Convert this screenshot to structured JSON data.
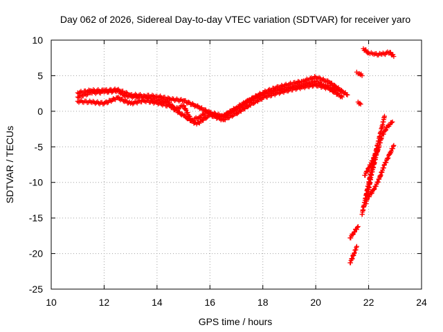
{
  "chart_data": {
    "type": "scatter",
    "title": "Day 062 of 2026, Sidereal Day-to-day VTEC variation (SDTVAR) for receiver yaro",
    "xlabel": "GPS time / hours",
    "ylabel": "SDTVAR / TECUs",
    "xlim": [
      10,
      24
    ],
    "ylim": [
      -25,
      10
    ],
    "xticks": [
      10,
      12,
      14,
      16,
      18,
      20,
      22,
      24
    ],
    "yticks": [
      10,
      5,
      0,
      -5,
      -10,
      -15,
      -20,
      -25
    ],
    "xtick_labels": [
      "10",
      "12",
      "14",
      "16",
      "18",
      "20",
      "22",
      "24"
    ],
    "ytick_labels": [
      "10",
      "5",
      "0",
      "-5",
      "-10",
      "-15",
      "-20",
      "-25"
    ],
    "grid": true,
    "marker": "+",
    "colors": {
      "series": "#ff0000",
      "grid": "#a0a0a0",
      "frame": "#000000"
    },
    "series": [
      {
        "name": "main-trace",
        "x": [
          11.0,
          11.5,
          12.0,
          12.5,
          12.8,
          13.2,
          13.6,
          14.0,
          14.4,
          14.7,
          15.0,
          15.3,
          15.6,
          15.9,
          16.2,
          16.5,
          16.8,
          17.2,
          17.6,
          18.0,
          18.5,
          19.0,
          19.5,
          20.0,
          20.3,
          20.6,
          20.9,
          21.2
        ],
        "y": [
          2.0,
          2.6,
          2.7,
          2.9,
          2.2,
          2.0,
          2.0,
          1.6,
          1.3,
          0.3,
          0.8,
          -1.3,
          -0.8,
          -0.1,
          -0.7,
          -0.7,
          -0.1,
          0.8,
          1.8,
          2.4,
          2.9,
          3.3,
          3.7,
          4.2,
          3.7,
          3.3,
          3.0,
          2.3
        ]
      },
      {
        "name": "upper-band",
        "x": [
          11.0,
          11.5,
          12.0,
          12.5,
          13.0,
          13.5,
          14.0,
          14.5,
          15.0,
          15.5,
          16.0,
          16.5,
          17.0,
          17.5,
          18.0,
          18.5,
          19.0,
          19.5,
          20.0,
          20.5,
          21.0
        ],
        "y": [
          2.6,
          2.9,
          2.9,
          3.0,
          2.3,
          2.2,
          2.1,
          1.7,
          1.5,
          0.7,
          -0.2,
          -0.7,
          0.5,
          1.6,
          2.6,
          3.3,
          3.8,
          4.2,
          4.8,
          4.1,
          2.8
        ]
      },
      {
        "name": "lower-band",
        "x": [
          11.0,
          11.5,
          12.0,
          12.5,
          13.0,
          13.5,
          14.0,
          14.5,
          15.0,
          15.5,
          16.0,
          16.5,
          17.0,
          17.5,
          18.0,
          18.5,
          19.0,
          19.5,
          20.0,
          20.5,
          21.0
        ],
        "y": [
          1.4,
          1.3,
          1.1,
          1.9,
          1.1,
          1.5,
          1.2,
          0.7,
          -0.6,
          -1.8,
          -0.5,
          -1.2,
          -0.3,
          0.9,
          1.9,
          2.5,
          3.0,
          3.4,
          3.7,
          3.2,
          2.0
        ]
      },
      {
        "name": "segment-a",
        "x": [
          21.55,
          21.65,
          21.75
        ],
        "y": [
          5.5,
          5.3,
          5.0
        ]
      },
      {
        "name": "segment-b",
        "x": [
          21.6,
          21.7
        ],
        "y": [
          1.3,
          1.0
        ]
      },
      {
        "name": "segment-c",
        "x": [
          21.8,
          22.0,
          22.2,
          22.5,
          22.8,
          22.95
        ],
        "y": [
          8.8,
          8.2,
          8.0,
          8.0,
          8.3,
          7.7
        ]
      },
      {
        "name": "segment-d",
        "x": [
          21.3,
          21.45,
          21.6
        ],
        "y": [
          -17.8,
          -17.0,
          -16.2
        ]
      },
      {
        "name": "segment-e",
        "x": [
          21.3,
          21.45,
          21.55
        ],
        "y": [
          -21.3,
          -20.0,
          -19.0
        ]
      },
      {
        "name": "steep-1",
        "x": [
          21.75,
          21.95,
          22.15,
          22.35,
          22.5,
          22.6
        ],
        "y": [
          -14.5,
          -11.0,
          -7.5,
          -4.5,
          -2.3,
          -0.7
        ]
      },
      {
        "name": "steep-2",
        "x": [
          21.9,
          22.1,
          22.3,
          22.5,
          22.7,
          22.9
        ],
        "y": [
          -13.0,
          -9.0,
          -6.0,
          -3.5,
          -2.2,
          -1.5
        ]
      },
      {
        "name": "steep-3",
        "x": [
          21.85,
          22.0,
          22.2,
          22.4
        ],
        "y": [
          -9.0,
          -8.0,
          -6.5,
          -5.0
        ]
      },
      {
        "name": "steep-4",
        "x": [
          22.0,
          22.2,
          22.4,
          22.6,
          22.8,
          22.95
        ],
        "y": [
          -12.0,
          -11.0,
          -9.5,
          -7.5,
          -6.0,
          -4.8
        ]
      }
    ]
  }
}
